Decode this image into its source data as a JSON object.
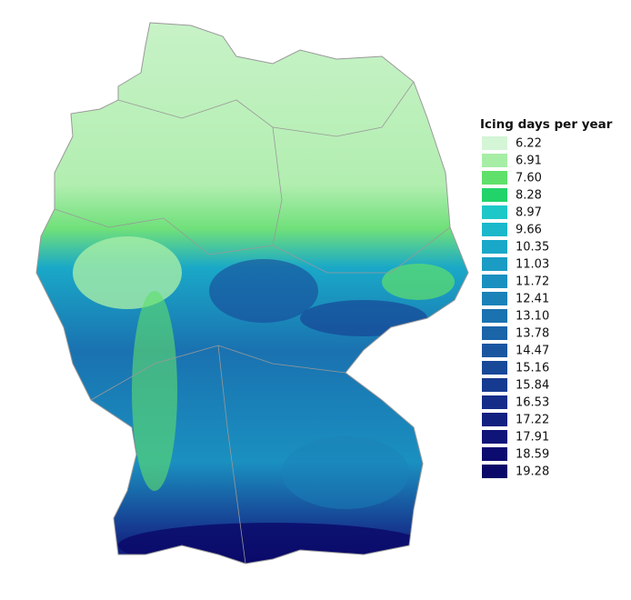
{
  "legend": {
    "title": "Icing days per year",
    "items": [
      {
        "label": "6.22",
        "color": "#d4f5d6"
      },
      {
        "label": "6.91",
        "color": "#a6eea6"
      },
      {
        "label": "7.60",
        "color": "#5fe06a"
      },
      {
        "label": "8.28",
        "color": "#22d36a"
      },
      {
        "label": "8.97",
        "color": "#1ec8c8"
      },
      {
        "label": "9.66",
        "color": "#1bb8cc"
      },
      {
        "label": "10.35",
        "color": "#1aa8c8"
      },
      {
        "label": "11.03",
        "color": "#1a9cc4"
      },
      {
        "label": "11.72",
        "color": "#1a90c0"
      },
      {
        "label": "12.41",
        "color": "#1a82b8"
      },
      {
        "label": "13.10",
        "color": "#1a72b0"
      },
      {
        "label": "13.78",
        "color": "#1a64a8"
      },
      {
        "label": "14.47",
        "color": "#1a56a0"
      },
      {
        "label": "15.16",
        "color": "#184898"
      },
      {
        "label": "15.84",
        "color": "#163a90"
      },
      {
        "label": "16.53",
        "color": "#142d88"
      },
      {
        "label": "17.22",
        "color": "#122080"
      },
      {
        "label": "17.91",
        "color": "#0f1478"
      },
      {
        "label": "18.59",
        "color": "#0c0c70"
      },
      {
        "label": "19.28",
        "color": "#0a0868"
      }
    ]
  }
}
